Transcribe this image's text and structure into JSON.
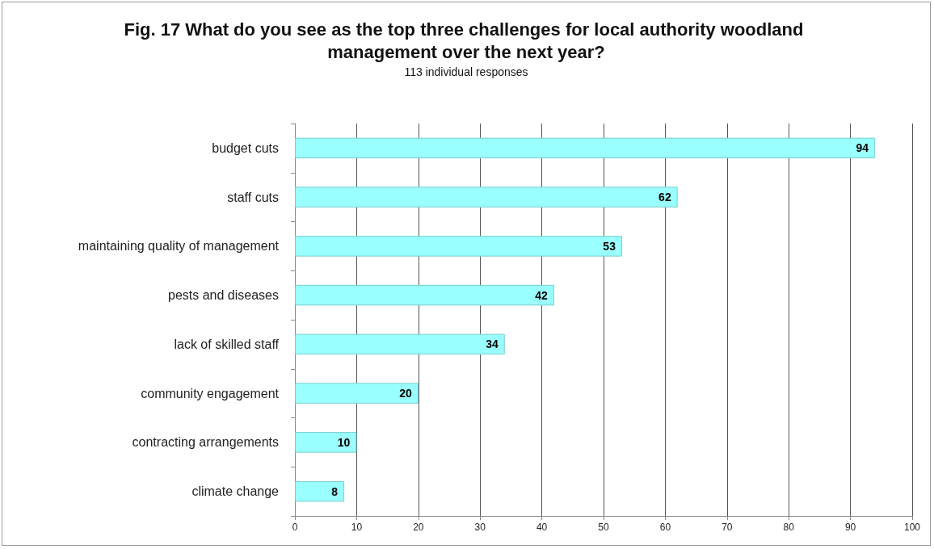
{
  "chart_data": {
    "type": "bar",
    "orientation": "horizontal",
    "title": "Fig. 17 What do you see as the top three challenges for local authority woodland management over the next year?",
    "subtitle": "113 individual responses",
    "categories": [
      "budget cuts",
      "staff cuts",
      "maintaining quality of management",
      "pests and diseases",
      "lack of skilled staff",
      "community engagement",
      "contracting arrangements",
      "climate change"
    ],
    "values": [
      94,
      62,
      53,
      42,
      34,
      20,
      10,
      8
    ],
    "color": "#99ffff",
    "xlim": [
      0,
      100
    ],
    "xticks": [
      0,
      10,
      20,
      30,
      40,
      50,
      60,
      70,
      80,
      90,
      100
    ],
    "grid": "x",
    "data_labels": true
  }
}
